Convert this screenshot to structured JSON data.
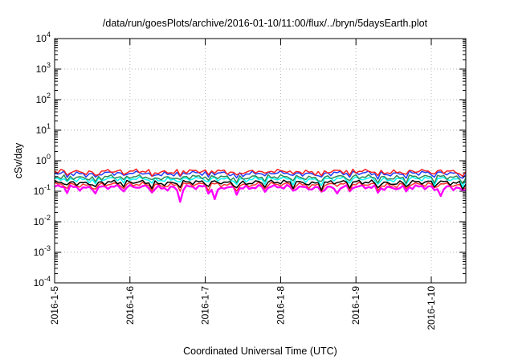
{
  "chart_data": {
    "type": "line",
    "title": "/data/run/goesPlots/archive/2016-01-10/11:00/flux/../bryn/5daysEarth.plot",
    "xlabel": "Coordinated Universal Time (UTC)",
    "ylabel": "cSv/day",
    "yscale": "log",
    "ylim": [
      0.0001,
      10000
    ],
    "xlim": [
      "2016-01-05 00:00",
      "2016-01-10 11:00"
    ],
    "grid": true,
    "legend": "none",
    "x_ticks": [
      {
        "label": "2016-1-5",
        "value": "2016-01-05"
      },
      {
        "label": "2016-1-6",
        "value": "2016-01-06"
      },
      {
        "label": "2016-1-7",
        "value": "2016-01-07"
      },
      {
        "label": "2016-1-8",
        "value": "2016-01-08"
      },
      {
        "label": "2016-1-9",
        "value": "2016-01-09"
      },
      {
        "label": "2016-1-10",
        "value": "2016-01-10"
      }
    ],
    "y_ticks": [
      {
        "base": "10",
        "exp": "4",
        "value": 10000
      },
      {
        "base": "10",
        "exp": "3",
        "value": 1000
      },
      {
        "base": "10",
        "exp": "2",
        "value": 100
      },
      {
        "base": "10",
        "exp": "1",
        "value": 10
      },
      {
        "base": "10",
        "exp": "0",
        "value": 1
      },
      {
        "base": "10",
        "exp": "-1",
        "value": 0.1
      },
      {
        "base": "10",
        "exp": "-2",
        "value": 0.01
      },
      {
        "base": "10",
        "exp": "-3",
        "value": 0.001
      },
      {
        "base": "10",
        "exp": "-4",
        "value": 0.0001
      }
    ],
    "series": [
      {
        "color": "#ff00ff",
        "base_value": 0.14,
        "dips": [
          {
            "x": "2016-01-06 16:00",
            "value": 0.045
          },
          {
            "x": "2016-01-07 03:00",
            "value": 0.055
          },
          {
            "x": "2016-01-08 18:00",
            "value": 0.085
          },
          {
            "x": "2016-01-10 03:00",
            "value": 0.07
          }
        ]
      },
      {
        "color": "#ff3030",
        "base_value": 0.17,
        "dips": []
      },
      {
        "color": "#000000",
        "base_value": 0.2,
        "dips": []
      },
      {
        "color": "#00ffff",
        "base_value": 0.26,
        "dips": []
      },
      {
        "color": "#2e8b57",
        "base_value": 0.3,
        "dips": []
      },
      {
        "color": "#1e3cff",
        "base_value": 0.4,
        "dips": []
      },
      {
        "color": "#ff2020",
        "base_value": 0.46,
        "dips": []
      }
    ]
  }
}
